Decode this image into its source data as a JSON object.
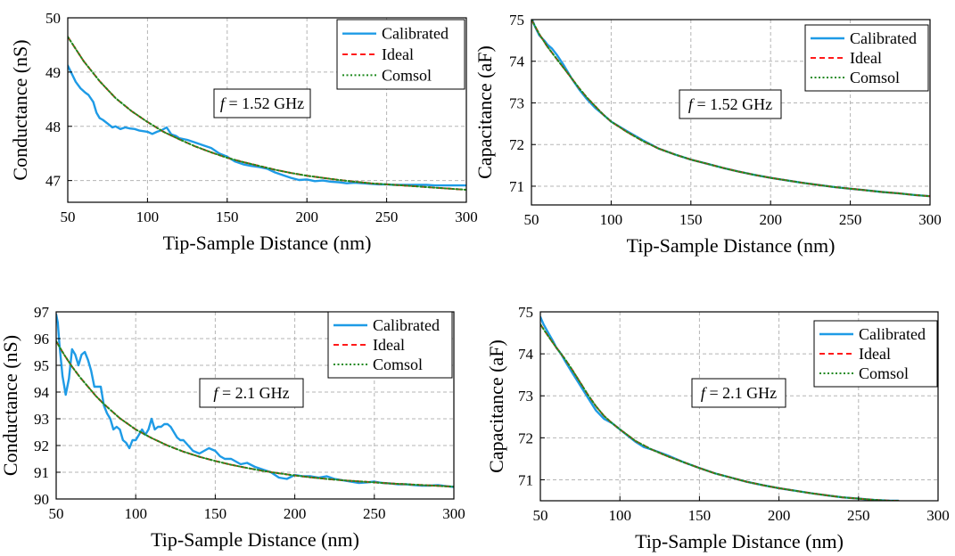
{
  "figure": {
    "legend_labels": [
      "Calibrated",
      "Ideal",
      "Comsol"
    ],
    "colors": {
      "calibrated": "#1E9BE6",
      "ideal": "#FF1A1A",
      "comsol": "#1F8A1F"
    }
  },
  "chart_data": [
    {
      "type": "line",
      "xlabel": "Tip-Sample Distance (nm)",
      "ylabel": "Conductance (nS)",
      "xlim": [
        50,
        300
      ],
      "ylim": [
        46.6,
        50
      ],
      "xticks": [
        50,
        100,
        150,
        200,
        250,
        300
      ],
      "yticks": [
        47,
        48,
        49,
        50
      ],
      "grid": true,
      "legend": "top-right",
      "annotation_prefix": "f",
      "annotation_suffix": " = 1.52 GHz",
      "series": [
        {
          "name": "Calibrated",
          "x": [
            50,
            52,
            55,
            58,
            61,
            63,
            66,
            68,
            70,
            72,
            75,
            78,
            80,
            83,
            86,
            89,
            92,
            95,
            100,
            103,
            106,
            109,
            112,
            115,
            118,
            120,
            125,
            130,
            135,
            140,
            145,
            150,
            155,
            160,
            165,
            170,
            175,
            180,
            185,
            190,
            195,
            200,
            205,
            210,
            215,
            220,
            225,
            230,
            235,
            240,
            245,
            250,
            255,
            260,
            265,
            270,
            275,
            280,
            285,
            290,
            295,
            300
          ],
          "y": [
            49.12,
            49.0,
            48.82,
            48.7,
            48.62,
            48.58,
            48.45,
            48.25,
            48.15,
            48.12,
            48.05,
            47.98,
            48.0,
            47.95,
            47.98,
            47.96,
            47.95,
            47.92,
            47.9,
            47.86,
            47.9,
            47.93,
            47.98,
            47.85,
            47.82,
            47.78,
            47.75,
            47.7,
            47.65,
            47.6,
            47.5,
            47.44,
            47.35,
            47.3,
            47.27,
            47.25,
            47.22,
            47.15,
            47.1,
            47.05,
            47.01,
            47.02,
            46.99,
            47.0,
            46.98,
            46.97,
            46.95,
            46.96,
            46.95,
            46.94,
            46.93,
            46.93,
            46.92,
            46.92,
            46.92,
            46.92,
            46.92,
            46.91,
            46.91,
            46.91,
            46.91,
            46.91
          ]
        },
        {
          "name": "Ideal",
          "x": [
            50,
            60,
            70,
            80,
            90,
            100,
            110,
            120,
            130,
            140,
            150,
            160,
            170,
            180,
            190,
            200,
            210,
            220,
            230,
            240,
            250,
            260,
            270,
            280,
            290,
            300
          ],
          "y": [
            49.65,
            49.2,
            48.83,
            48.52,
            48.28,
            48.08,
            47.9,
            47.76,
            47.63,
            47.52,
            47.42,
            47.34,
            47.27,
            47.2,
            47.14,
            47.09,
            47.05,
            47.01,
            46.98,
            46.95,
            46.93,
            46.91,
            46.89,
            46.87,
            46.85,
            46.83
          ]
        },
        {
          "name": "Comsol",
          "x": [
            50,
            60,
            70,
            80,
            90,
            100,
            110,
            120,
            130,
            140,
            150,
            160,
            170,
            180,
            190,
            200,
            210,
            220,
            230,
            240,
            250,
            260,
            270,
            280,
            290,
            300
          ],
          "y": [
            49.65,
            49.2,
            48.83,
            48.52,
            48.28,
            48.08,
            47.9,
            47.76,
            47.63,
            47.52,
            47.42,
            47.34,
            47.27,
            47.2,
            47.14,
            47.09,
            47.05,
            47.01,
            46.98,
            46.95,
            46.93,
            46.91,
            46.89,
            46.87,
            46.85,
            46.83
          ]
        }
      ]
    },
    {
      "type": "line",
      "xlabel": "Tip-Sample Distance (nm)",
      "ylabel": "Capacitance (aF)",
      "xlim": [
        50,
        300
      ],
      "ylim": [
        70.55,
        75
      ],
      "xticks": [
        50,
        100,
        150,
        200,
        250,
        300
      ],
      "yticks": [
        71,
        72,
        73,
        74,
        75
      ],
      "grid": true,
      "legend": "top-right",
      "annotation_prefix": "f",
      "annotation_suffix": " = 1.52 GHz",
      "series": [
        {
          "name": "Calibrated",
          "x": [
            50,
            52,
            55,
            58,
            60,
            63,
            66,
            70,
            75,
            80,
            85,
            90,
            95,
            100,
            110,
            120,
            130,
            140,
            150,
            160,
            170,
            180,
            190,
            200,
            210,
            220,
            230,
            240,
            250,
            260,
            270,
            280,
            290,
            300
          ],
          "y": [
            75.05,
            74.85,
            74.62,
            74.5,
            74.4,
            74.3,
            74.15,
            73.92,
            73.6,
            73.32,
            73.08,
            72.88,
            72.72,
            72.55,
            72.32,
            72.1,
            71.9,
            71.76,
            71.64,
            71.54,
            71.44,
            71.35,
            71.27,
            71.2,
            71.14,
            71.08,
            71.03,
            70.98,
            70.94,
            70.9,
            70.86,
            70.83,
            70.79,
            70.76
          ]
        },
        {
          "name": "Ideal",
          "x": [
            50,
            55,
            60,
            65,
            70,
            75,
            80,
            85,
            90,
            95,
            100,
            110,
            120,
            130,
            140,
            150,
            160,
            170,
            180,
            190,
            200,
            210,
            220,
            230,
            240,
            250,
            260,
            270,
            280,
            290,
            300
          ],
          "y": [
            75.0,
            74.65,
            74.35,
            74.1,
            73.85,
            73.6,
            73.35,
            73.12,
            72.92,
            72.72,
            72.55,
            72.3,
            72.08,
            71.9,
            71.76,
            71.64,
            71.54,
            71.44,
            71.35,
            71.27,
            71.2,
            71.14,
            71.08,
            71.03,
            70.98,
            70.94,
            70.9,
            70.86,
            70.83,
            70.79,
            70.76
          ]
        },
        {
          "name": "Comsol",
          "x": [
            50,
            55,
            60,
            65,
            70,
            75,
            80,
            85,
            90,
            95,
            100,
            110,
            120,
            130,
            140,
            150,
            160,
            170,
            180,
            190,
            200,
            210,
            220,
            230,
            240,
            250,
            260,
            270,
            280,
            290,
            300
          ],
          "y": [
            75.0,
            74.65,
            74.35,
            74.1,
            73.85,
            73.6,
            73.35,
            73.12,
            72.92,
            72.72,
            72.55,
            72.3,
            72.08,
            71.9,
            71.76,
            71.64,
            71.54,
            71.44,
            71.35,
            71.27,
            71.2,
            71.14,
            71.08,
            71.03,
            70.98,
            70.94,
            70.9,
            70.86,
            70.83,
            70.79,
            70.76
          ]
        }
      ]
    },
    {
      "type": "line",
      "xlabel": "Tip-Sample Distance (nm)",
      "ylabel": "Conductance (nS)",
      "xlim": [
        50,
        300
      ],
      "ylim": [
        90,
        97
      ],
      "xticks": [
        50,
        100,
        150,
        200,
        250,
        300
      ],
      "yticks": [
        90,
        91,
        92,
        93,
        94,
        95,
        96,
        97
      ],
      "grid": true,
      "legend": "top-right",
      "annotation_prefix": "f",
      "annotation_suffix": " = 2.1 GHz",
      "series": [
        {
          "name": "Calibrated",
          "x": [
            50,
            51,
            52,
            54,
            56,
            58,
            60,
            62,
            64,
            66,
            68,
            70,
            72,
            74,
            76,
            78,
            80,
            82,
            84,
            86,
            88,
            90,
            92,
            94,
            96,
            98,
            100,
            102,
            104,
            106,
            108,
            110,
            112,
            114,
            116,
            118,
            120,
            122,
            124,
            126,
            128,
            130,
            133,
            136,
            140,
            143,
            146,
            150,
            153,
            156,
            160,
            163,
            166,
            170,
            175,
            180,
            185,
            190,
            195,
            200,
            205,
            210,
            215,
            220,
            225,
            230,
            235,
            240,
            245,
            250,
            255,
            260,
            265,
            270,
            275,
            280,
            285,
            290,
            295,
            300
          ],
          "y": [
            96.9,
            96.6,
            95.8,
            94.6,
            93.9,
            94.5,
            95.6,
            95.4,
            95.0,
            95.4,
            95.5,
            95.2,
            94.8,
            94.2,
            94.2,
            94.2,
            93.5,
            93.2,
            93.0,
            92.6,
            92.7,
            92.6,
            92.2,
            92.1,
            91.9,
            92.2,
            92.2,
            92.4,
            92.6,
            92.4,
            92.6,
            93.0,
            92.6,
            92.7,
            92.7,
            92.8,
            92.8,
            92.7,
            92.5,
            92.3,
            92.2,
            92.2,
            92.0,
            91.8,
            91.7,
            91.8,
            91.9,
            91.8,
            91.6,
            91.5,
            91.5,
            91.4,
            91.3,
            91.35,
            91.2,
            91.1,
            91.0,
            90.8,
            90.75,
            90.9,
            90.85,
            90.85,
            90.8,
            90.85,
            90.75,
            90.7,
            90.65,
            90.6,
            90.62,
            90.65,
            90.6,
            90.58,
            90.55,
            90.55,
            90.52,
            90.5,
            90.5,
            90.52,
            90.48,
            90.45
          ]
        },
        {
          "name": "Ideal",
          "x": [
            50,
            55,
            60,
            65,
            70,
            75,
            80,
            90,
            100,
            110,
            120,
            130,
            140,
            150,
            160,
            170,
            180,
            190,
            200,
            210,
            220,
            230,
            240,
            250,
            260,
            270,
            280,
            290,
            300
          ],
          "y": [
            95.9,
            95.4,
            94.95,
            94.55,
            94.2,
            93.85,
            93.55,
            93.02,
            92.6,
            92.28,
            92.0,
            91.77,
            91.58,
            91.42,
            91.28,
            91.16,
            91.05,
            90.96,
            90.88,
            90.81,
            90.75,
            90.7,
            90.66,
            90.62,
            90.58,
            90.55,
            90.52,
            90.49,
            90.46
          ]
        },
        {
          "name": "Comsol",
          "x": [
            50,
            55,
            60,
            65,
            70,
            75,
            80,
            90,
            100,
            110,
            120,
            130,
            140,
            150,
            160,
            170,
            180,
            190,
            200,
            210,
            220,
            230,
            240,
            250,
            260,
            270,
            280,
            290,
            300
          ],
          "y": [
            95.9,
            95.4,
            94.95,
            94.55,
            94.2,
            93.85,
            93.55,
            93.02,
            92.6,
            92.28,
            92.0,
            91.77,
            91.58,
            91.42,
            91.28,
            91.16,
            91.05,
            90.96,
            90.88,
            90.81,
            90.75,
            90.7,
            90.66,
            90.62,
            90.58,
            90.55,
            90.52,
            90.49,
            90.46
          ]
        }
      ]
    },
    {
      "type": "line",
      "xlabel": "Tip-Sample Distance (nm)",
      "ylabel": "Capacitance (aF)",
      "xlim": [
        50,
        300
      ],
      "ylim": [
        70.5,
        75
      ],
      "xticks": [
        50,
        100,
        150,
        200,
        250,
        300
      ],
      "yticks": [
        71,
        72,
        73,
        74,
        75
      ],
      "grid": true,
      "legend": "top-right",
      "annotation_prefix": "f",
      "annotation_suffix": " = 2.1 GHz",
      "series": [
        {
          "name": "Calibrated",
          "x": [
            50,
            52,
            55,
            58,
            60,
            63,
            66,
            70,
            75,
            80,
            85,
            90,
            95,
            100,
            105,
            110,
            115,
            120,
            130,
            140,
            150,
            160,
            170,
            180,
            190,
            200,
            210,
            220,
            230,
            240,
            250,
            260,
            270,
            275
          ],
          "y": [
            74.88,
            74.7,
            74.5,
            74.3,
            74.15,
            74.0,
            73.8,
            73.55,
            73.25,
            72.95,
            72.65,
            72.45,
            72.35,
            72.2,
            72.05,
            71.9,
            71.78,
            71.72,
            71.58,
            71.42,
            71.28,
            71.15,
            71.05,
            70.95,
            70.87,
            70.8,
            70.74,
            70.68,
            70.63,
            70.58,
            70.55,
            70.52,
            70.5,
            70.5
          ]
        },
        {
          "name": "Ideal",
          "x": [
            50,
            55,
            60,
            65,
            70,
            75,
            80,
            85,
            90,
            95,
            100,
            110,
            120,
            130,
            140,
            150,
            160,
            170,
            180,
            190,
            200,
            210,
            220,
            230,
            240,
            250,
            260,
            270,
            275
          ],
          "y": [
            74.7,
            74.42,
            74.15,
            73.9,
            73.62,
            73.32,
            73.02,
            72.75,
            72.52,
            72.35,
            72.2,
            71.92,
            71.72,
            71.56,
            71.42,
            71.28,
            71.15,
            71.05,
            70.95,
            70.87,
            70.8,
            70.74,
            70.68,
            70.63,
            70.58,
            70.55,
            70.52,
            70.5,
            70.5
          ]
        },
        {
          "name": "Comsol",
          "x": [
            50,
            55,
            60,
            65,
            70,
            75,
            80,
            85,
            90,
            95,
            100,
            110,
            120,
            130,
            140,
            150,
            160,
            170,
            180,
            190,
            200,
            210,
            220,
            230,
            240,
            250,
            260,
            270,
            275
          ],
          "y": [
            74.7,
            74.42,
            74.15,
            73.9,
            73.62,
            73.32,
            73.02,
            72.75,
            72.52,
            72.35,
            72.2,
            71.92,
            71.72,
            71.56,
            71.42,
            71.28,
            71.15,
            71.05,
            70.95,
            70.87,
            70.8,
            70.74,
            70.68,
            70.63,
            70.58,
            70.55,
            70.52,
            70.5,
            70.5
          ]
        }
      ]
    }
  ]
}
